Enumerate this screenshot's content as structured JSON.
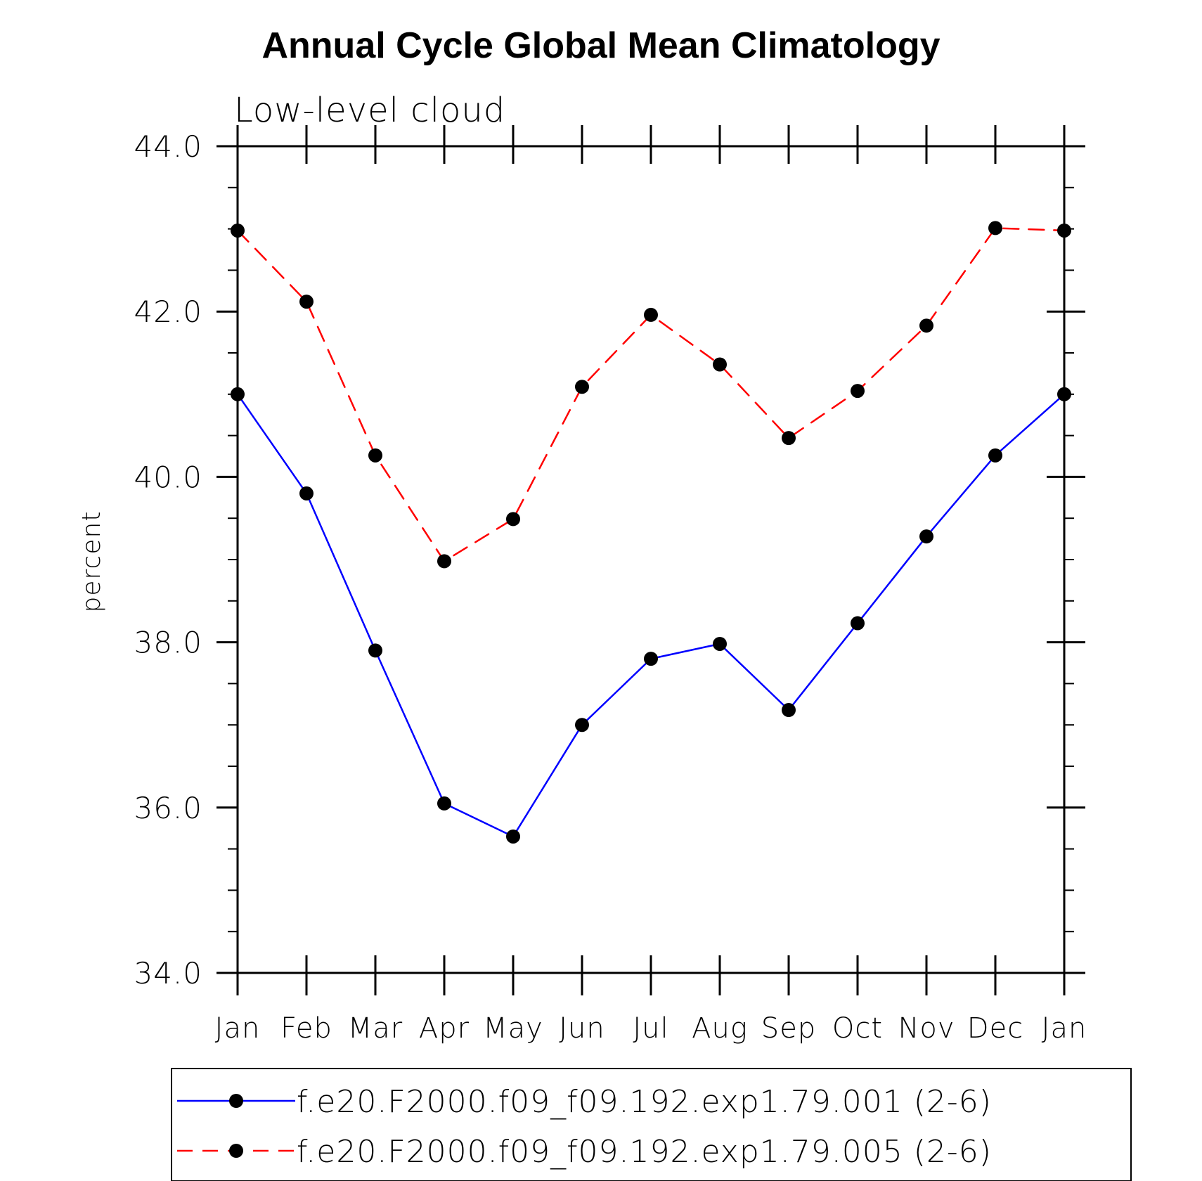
{
  "chart_data": {
    "type": "line",
    "title": "Annual Cycle Global Mean Climatology",
    "subtitle": "Low-level cloud",
    "xlabel": "",
    "ylabel": "percent",
    "categories": [
      "Jan",
      "Feb",
      "Mar",
      "Apr",
      "May",
      "Jun",
      "Jul",
      "Aug",
      "Sep",
      "Oct",
      "Nov",
      "Dec",
      "Jan"
    ],
    "ylim": [
      34.0,
      44.0
    ],
    "y_ticks": [
      "34.0",
      "36.0",
      "38.0",
      "40.0",
      "42.0",
      "44.0"
    ],
    "series": [
      {
        "name": "f.e20.F2000.f09_f09.192.exp1.79.001 (2-6)",
        "color": "#0000ff",
        "dash": "solid",
        "marker": "circle",
        "values": [
          41.0,
          39.8,
          37.9,
          36.05,
          35.65,
          37.0,
          37.8,
          37.98,
          37.18,
          38.23,
          39.28,
          40.26,
          41.0
        ]
      },
      {
        "name": "f.e20.F2000.f09_f09.192.exp1.79.005 (2-6)",
        "color": "#ff0000",
        "dash": "dashed",
        "marker": "circle",
        "values": [
          42.98,
          42.12,
          40.26,
          38.98,
          39.49,
          41.09,
          41.96,
          41.36,
          40.47,
          41.04,
          41.83,
          43.01,
          42.98
        ]
      }
    ],
    "legend_position": "bottom"
  }
}
